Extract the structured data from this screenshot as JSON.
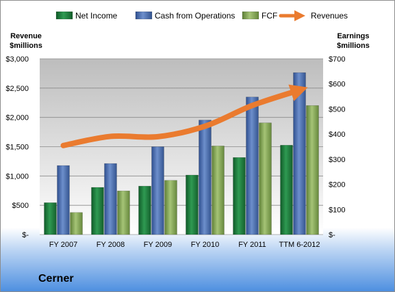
{
  "chart_data": {
    "type": "bar",
    "company": "Cerner",
    "categories": [
      "FY 2007",
      "FY 2008",
      "FY 2009",
      "FY 2010",
      "FY 2011",
      "TTM 6-2012"
    ],
    "left_axis": {
      "label_line1": "Revenue",
      "label_line2": "$millions",
      "ylim": [
        0,
        3000
      ],
      "ticks": [
        0,
        500,
        1000,
        1500,
        2000,
        2500,
        3000
      ],
      "tick_labels": [
        "$-",
        "$500",
        "$1,000",
        "$1,500",
        "$2,000",
        "$2,500",
        "$3,000"
      ]
    },
    "right_axis": {
      "label_line1": "Earnings",
      "label_line2": "$millions",
      "ylim": [
        0,
        700
      ],
      "ticks": [
        0,
        100,
        200,
        300,
        400,
        500,
        600,
        700
      ],
      "tick_labels": [
        "$-",
        "$100",
        "$200",
        "$300",
        "$400",
        "$500",
        "$600",
        "$700"
      ]
    },
    "series": [
      {
        "name": "Net Income",
        "type": "bar",
        "axis": "right",
        "color": "#1f7a3c",
        "values": [
          127,
          188,
          193,
          237,
          307,
          356
        ]
      },
      {
        "name": "Cash from Operations",
        "type": "bar",
        "axis": "right",
        "color": "#4a6fb0",
        "values": [
          275,
          283,
          350,
          456,
          548,
          645
        ]
      },
      {
        "name": "FCF",
        "type": "bar",
        "axis": "right",
        "color": "#86a858",
        "values": [
          88,
          174,
          216,
          353,
          445,
          514
        ]
      },
      {
        "name": "Revenues",
        "type": "line",
        "axis": "left",
        "color": "#ea7b2f",
        "values": [
          1520,
          1676,
          1671,
          1850,
          2203,
          2466
        ]
      }
    ],
    "grid": true,
    "legend_position": "top"
  }
}
